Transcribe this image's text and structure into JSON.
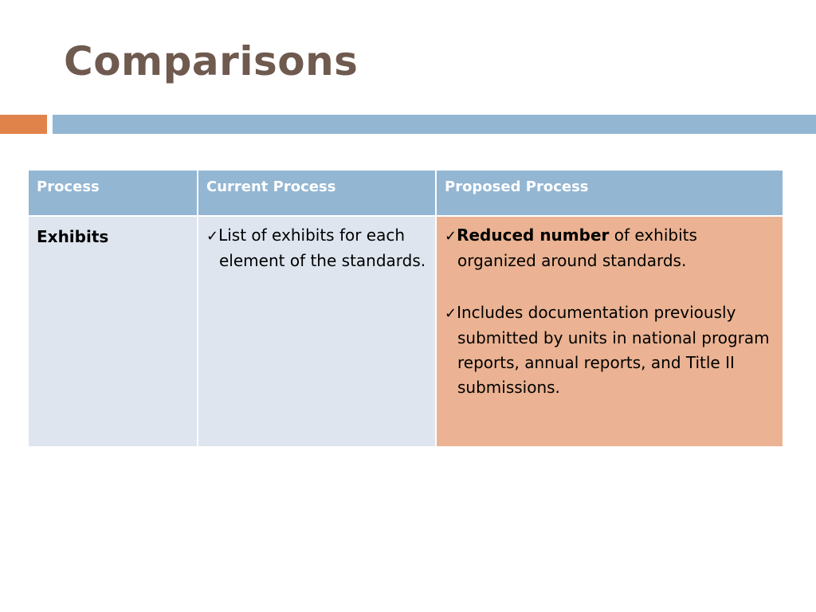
{
  "slide": {
    "title": "Comparisons"
  },
  "table": {
    "headers": [
      "Process",
      "Current Process",
      "Proposed Process"
    ],
    "rows": [
      {
        "label": "Exhibits",
        "current": [
          {
            "text": "List of exhibits for each element of the standards."
          }
        ],
        "proposed": [
          {
            "bold": "Reduced number",
            "text": " of exhibits organized around standards."
          },
          {
            "text": "Includes documentation previously submitted by units in national program reports, annual reports, and Title II submissions."
          }
        ]
      }
    ]
  },
  "icons": {
    "bullet_check": "✓"
  },
  "colors": {
    "title": "#6f5a4f",
    "accent_orange": "#e0834a",
    "accent_blue": "#93b6d3",
    "cell_light": "#dee5ef",
    "cell_highlight": "#ebb393"
  }
}
